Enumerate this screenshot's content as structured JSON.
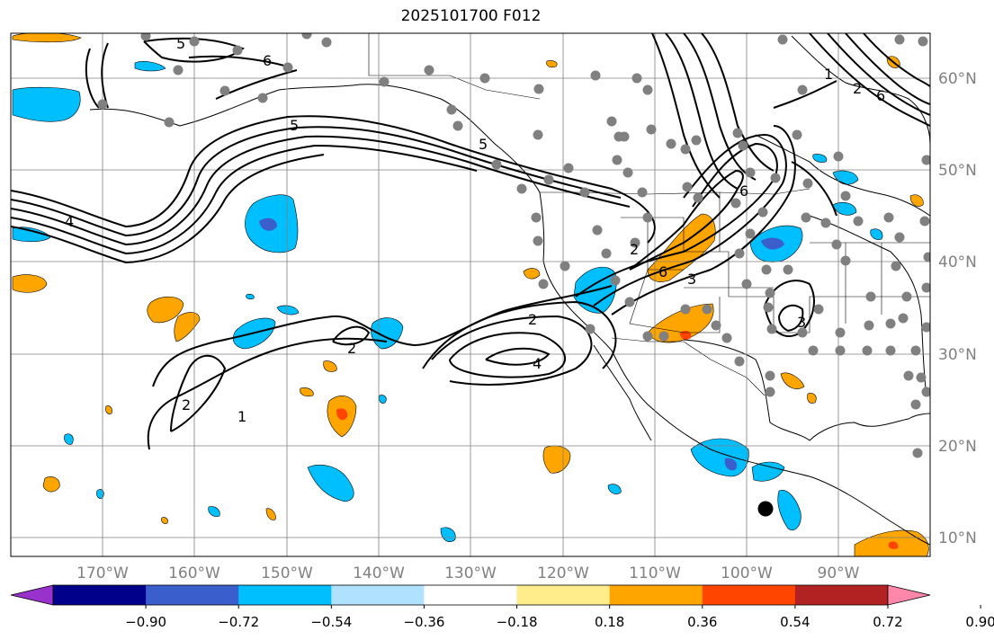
{
  "title": "2025101700 F012",
  "lon_labels": [
    "170°W",
    "160°W",
    "150°W",
    "140°W",
    "130°W",
    "120°W",
    "110°W",
    "100°W",
    "90°W"
  ],
  "lat_labels": [
    "60°N",
    "50°N",
    "40°N",
    "30°N",
    "20°N",
    "10°N"
  ],
  "colorbar": {
    "colors": [
      "#9932cc",
      "#00008b",
      "#3a5fcd",
      "#00bfff",
      "#b0e2ff",
      "#ffffff",
      "#ffec8b",
      "#ffa500",
      "#ff4500",
      "#b22222",
      "#ff88aa"
    ],
    "tick_labels": [
      "−0.90",
      "−0.72",
      "−0.54",
      "−0.36",
      "−0.18",
      "0.18",
      "0.36",
      "0.54",
      "0.72",
      "0.90"
    ]
  },
  "contour_labels": [
    "5",
    "6",
    "5",
    "4",
    "2",
    "2",
    "1",
    "2",
    "4",
    "3",
    "6",
    "2",
    "5",
    "6",
    "3",
    "1",
    "2",
    "6"
  ],
  "colors": {
    "grid": "#808080",
    "contour": "#000000",
    "station": "#808080",
    "marker": "#000000"
  }
}
